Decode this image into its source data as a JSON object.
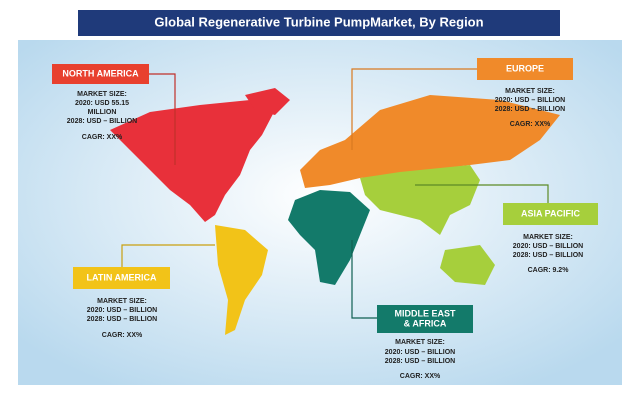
{
  "title": "Global Regenerative Turbine PumpMarket, By Region",
  "regions": [
    {
      "name": [
        "NORTH AMERICA"
      ],
      "lines": [
        "MARKET SIZE:",
        "2020: USD 55.15",
        "MILLION",
        "2028: USD – BILLION",
        "CAGR: XX%"
      ]
    },
    {
      "name": [
        "EUROPE"
      ],
      "lines": [
        "MARKET SIZE:",
        "2020: USD – BILLION",
        "2028: USD – BILLION",
        "CAGR: XX%"
      ]
    },
    {
      "name": [
        "ASIA PACIFIC"
      ],
      "lines": [
        "MARKET SIZE:",
        "2020: USD – BILLION",
        "2028: USD – BILLION",
        "CAGR: 9.2%"
      ]
    },
    {
      "name": [
        "LATIN AMERICA"
      ],
      "lines": [
        "MARKET SIZE:",
        "2020: USD – BILLION",
        "2028: USD – BILLION",
        "CAGR: XX%"
      ]
    },
    {
      "name": [
        "MIDDLE EAST",
        "& AFRICA"
      ],
      "lines": [
        "MARKET SIZE:",
        "2020: USD – BILLION",
        "2028: USD – BILLION",
        "CAGR: XX%"
      ]
    }
  ]
}
